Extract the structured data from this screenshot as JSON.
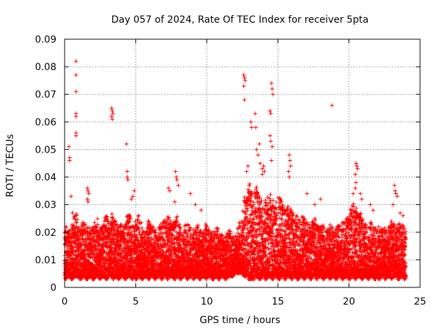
{
  "chart_data": {
    "type": "scatter",
    "title": "Day 057 of 2024, Rate Of TEC Index for receiver 5pta",
    "xlabel": "GPS time / hours",
    "ylabel": "ROTI / TECUs",
    "xlim": [
      0,
      25
    ],
    "ylim": [
      0,
      0.09
    ],
    "xticks": [
      0,
      5,
      10,
      15,
      20,
      25
    ],
    "xtick_labels": [
      "0",
      "5",
      "10",
      "15",
      "20",
      "25"
    ],
    "yticks": [
      0,
      0.01,
      0.02,
      0.03,
      0.04,
      0.05,
      0.06,
      0.07,
      0.08,
      0.09
    ],
    "ytick_labels": [
      "0",
      "0.01",
      "0.02",
      "0.03",
      "0.04",
      "0.05",
      "0.06",
      "0.07",
      "0.08",
      "0.09"
    ],
    "grid": true,
    "marker": "+",
    "color": "#ff0000",
    "series": [
      {
        "x": [
          0.0,
          0.15,
          0.3,
          0.45,
          0.6,
          0.75,
          0.9,
          1.05,
          1.2,
          1.35,
          1.5,
          1.65,
          1.8,
          1.95,
          2.1,
          2.25,
          2.4,
          2.55,
          2.7,
          2.85,
          3.0,
          3.15,
          3.3,
          3.45,
          3.6,
          3.75,
          3.9,
          4.05,
          4.2,
          4.35,
          4.5,
          4.65,
          4.8,
          4.95,
          5.1,
          5.25,
          5.4,
          5.55,
          5.7,
          5.85,
          6.0,
          6.15,
          6.3,
          6.45,
          6.6,
          6.75,
          6.9,
          7.05,
          7.2,
          7.35,
          7.5,
          7.65,
          7.8,
          7.95,
          8.1,
          8.25,
          8.4,
          8.55,
          8.7,
          8.85,
          9.0,
          9.15,
          9.3,
          9.45,
          9.6,
          9.75,
          9.9,
          10.05,
          10.2,
          10.35,
          10.5,
          10.65,
          10.8,
          10.95,
          11.1,
          11.25,
          11.4,
          11.55,
          11.7,
          11.85,
          12.0,
          12.15,
          12.3,
          12.45,
          12.6,
          12.75,
          12.9,
          13.05,
          13.2,
          13.35,
          13.5,
          13.65,
          13.8,
          13.95,
          14.1,
          14.25,
          14.4,
          14.55,
          14.7,
          14.85,
          15.0,
          15.15,
          15.3,
          15.45,
          15.6,
          15.75,
          15.9,
          16.05,
          16.2,
          16.35,
          16.5,
          16.65,
          16.8,
          16.95,
          17.1,
          17.25,
          17.4,
          17.55,
          17.7,
          17.85,
          18.0,
          18.15,
          18.3,
          18.45,
          18.6,
          18.75,
          18.9,
          19.05,
          19.2,
          19.35,
          19.5,
          19.65,
          19.8,
          19.95,
          20.1,
          20.25,
          20.4,
          20.55,
          20.7,
          20.85,
          21.0,
          21.15,
          21.3,
          21.45,
          21.6,
          21.75,
          21.9,
          22.05,
          22.2,
          22.35,
          22.5,
          22.65,
          22.8,
          22.95,
          23.1,
          23.25,
          23.4,
          23.55,
          23.7,
          23.85,
          24.0
        ],
        "y_low": [
          0.003,
          0.004,
          0.004,
          0.003,
          0.004,
          0.004,
          0.004,
          0.003,
          0.004,
          0.004,
          0.003,
          0.004,
          0.004,
          0.003,
          0.004,
          0.004,
          0.003,
          0.004,
          0.004,
          0.003,
          0.004,
          0.004,
          0.003,
          0.004,
          0.004,
          0.003,
          0.004,
          0.004,
          0.003,
          0.004,
          0.004,
          0.003,
          0.004,
          0.003,
          0.004,
          0.004,
          0.003,
          0.004,
          0.004,
          0.003,
          0.004,
          0.004,
          0.003,
          0.004,
          0.004,
          0.003,
          0.004,
          0.004,
          0.003,
          0.004,
          0.004,
          0.003,
          0.004,
          0.004,
          0.003,
          0.004,
          0.004,
          0.003,
          0.004,
          0.004,
          0.003,
          0.004,
          0.004,
          0.003,
          0.004,
          0.004,
          0.003,
          0.004,
          0.004,
          0.003,
          0.004,
          0.004,
          0.003,
          0.004,
          0.004,
          0.003,
          0.004,
          0.004,
          0.004,
          0.005,
          0.005,
          0.005,
          0.005,
          0.005,
          0.004,
          0.004,
          0.003,
          0.003,
          0.003,
          0.004,
          0.004,
          0.003,
          0.004,
          0.004,
          0.003,
          0.004,
          0.004,
          0.003,
          0.004,
          0.004,
          0.003,
          0.004,
          0.004,
          0.003,
          0.004,
          0.004,
          0.003,
          0.004,
          0.004,
          0.003,
          0.004,
          0.004,
          0.003,
          0.004,
          0.004,
          0.003,
          0.004,
          0.004,
          0.003,
          0.004,
          0.004,
          0.003,
          0.004,
          0.004,
          0.003,
          0.004,
          0.004,
          0.003,
          0.004,
          0.004,
          0.003,
          0.004,
          0.004,
          0.003,
          0.004,
          0.004,
          0.003,
          0.004,
          0.004,
          0.003,
          0.004,
          0.004,
          0.003,
          0.004,
          0.004,
          0.003,
          0.004,
          0.003,
          0.004,
          0.004,
          0.003,
          0.004,
          0.004,
          0.003,
          0.004,
          0.004,
          0.003,
          0.004,
          0.004,
          0.003,
          0.004
        ],
        "y_high": [
          0.022,
          0.02,
          0.021,
          0.024,
          0.026,
          0.028,
          0.024,
          0.022,
          0.025,
          0.024,
          0.022,
          0.023,
          0.024,
          0.022,
          0.024,
          0.025,
          0.023,
          0.022,
          0.024,
          0.026,
          0.025,
          0.024,
          0.027,
          0.025,
          0.023,
          0.022,
          0.024,
          0.022,
          0.023,
          0.026,
          0.027,
          0.024,
          0.022,
          0.025,
          0.026,
          0.024,
          0.022,
          0.021,
          0.022,
          0.024,
          0.023,
          0.022,
          0.021,
          0.02,
          0.022,
          0.023,
          0.025,
          0.024,
          0.026,
          0.025,
          0.023,
          0.024,
          0.026,
          0.024,
          0.022,
          0.021,
          0.023,
          0.024,
          0.022,
          0.02,
          0.021,
          0.022,
          0.023,
          0.021,
          0.02,
          0.022,
          0.023,
          0.021,
          0.02,
          0.019,
          0.021,
          0.022,
          0.02,
          0.019,
          0.018,
          0.019,
          0.02,
          0.021,
          0.02,
          0.019,
          0.02,
          0.022,
          0.024,
          0.028,
          0.033,
          0.036,
          0.038,
          0.036,
          0.034,
          0.037,
          0.036,
          0.034,
          0.032,
          0.03,
          0.033,
          0.035,
          0.034,
          0.032,
          0.03,
          0.031,
          0.033,
          0.032,
          0.03,
          0.028,
          0.03,
          0.031,
          0.029,
          0.027,
          0.026,
          0.025,
          0.024,
          0.026,
          0.025,
          0.024,
          0.023,
          0.022,
          0.024,
          0.025,
          0.023,
          0.022,
          0.023,
          0.024,
          0.022,
          0.021,
          0.023,
          0.022,
          0.021,
          0.022,
          0.023,
          0.022,
          0.024,
          0.025,
          0.026,
          0.028,
          0.03,
          0.032,
          0.03,
          0.028,
          0.027,
          0.025,
          0.024,
          0.023,
          0.022,
          0.024,
          0.023,
          0.022,
          0.021,
          0.022,
          0.023,
          0.022,
          0.021,
          0.022,
          0.023,
          0.024,
          0.023,
          0.022,
          0.023,
          0.024,
          0.023,
          0.022,
          0.021
        ],
        "outliers": [
          [
            0.8,
            0.082
          ],
          [
            0.8,
            0.077
          ],
          [
            0.8,
            0.071
          ],
          [
            0.8,
            0.063
          ],
          [
            0.8,
            0.062
          ],
          [
            0.8,
            0.056
          ],
          [
            0.8,
            0.055
          ],
          [
            0.3,
            0.051
          ],
          [
            0.35,
            0.047
          ],
          [
            0.35,
            0.046
          ],
          [
            0.45,
            0.033
          ],
          [
            0.55,
            0.027
          ],
          [
            1.6,
            0.036
          ],
          [
            1.65,
            0.035
          ],
          [
            1.7,
            0.034
          ],
          [
            1.6,
            0.032
          ],
          [
            1.65,
            0.031
          ],
          [
            3.3,
            0.065
          ],
          [
            3.35,
            0.064
          ],
          [
            3.4,
            0.063
          ],
          [
            3.3,
            0.062
          ],
          [
            3.35,
            0.061
          ],
          [
            4.35,
            0.052
          ],
          [
            4.4,
            0.042
          ],
          [
            4.4,
            0.04
          ],
          [
            4.45,
            0.039
          ],
          [
            4.9,
            0.035
          ],
          [
            4.8,
            0.033
          ],
          [
            4.7,
            0.032
          ],
          [
            7.3,
            0.036
          ],
          [
            7.4,
            0.035
          ],
          [
            7.8,
            0.042
          ],
          [
            7.85,
            0.04
          ],
          [
            7.9,
            0.039
          ],
          [
            8.0,
            0.037
          ],
          [
            7.75,
            0.031
          ],
          [
            8.85,
            0.034
          ],
          [
            9.2,
            0.03
          ],
          [
            9.6,
            0.028
          ],
          [
            12.6,
            0.077
          ],
          [
            12.65,
            0.076
          ],
          [
            12.7,
            0.075
          ],
          [
            12.6,
            0.073
          ],
          [
            12.65,
            0.068
          ],
          [
            12.8,
            0.042
          ],
          [
            12.9,
            0.044
          ],
          [
            13.1,
            0.06
          ],
          [
            13.15,
            0.058
          ],
          [
            13.4,
            0.063
          ],
          [
            13.45,
            0.058
          ],
          [
            13.5,
            0.05
          ],
          [
            13.6,
            0.048
          ],
          [
            13.7,
            0.052
          ],
          [
            13.75,
            0.045
          ],
          [
            13.9,
            0.043
          ],
          [
            13.9,
            0.041
          ],
          [
            14.0,
            0.044
          ],
          [
            14.05,
            0.042
          ],
          [
            14.55,
            0.074
          ],
          [
            14.6,
            0.072
          ],
          [
            14.65,
            0.07
          ],
          [
            14.45,
            0.064
          ],
          [
            14.5,
            0.063
          ],
          [
            14.45,
            0.055
          ],
          [
            14.5,
            0.053
          ],
          [
            14.6,
            0.051
          ],
          [
            14.55,
            0.046
          ],
          [
            15.8,
            0.048
          ],
          [
            15.85,
            0.046
          ],
          [
            15.9,
            0.044
          ],
          [
            15.75,
            0.042
          ],
          [
            15.8,
            0.04
          ],
          [
            17.05,
            0.034
          ],
          [
            17.6,
            0.03
          ],
          [
            18.0,
            0.032
          ],
          [
            18.8,
            0.066
          ],
          [
            20.5,
            0.045
          ],
          [
            20.55,
            0.044
          ],
          [
            20.6,
            0.043
          ],
          [
            20.45,
            0.041
          ],
          [
            20.5,
            0.038
          ],
          [
            20.45,
            0.036
          ],
          [
            20.3,
            0.034
          ],
          [
            20.8,
            0.034
          ],
          [
            20.9,
            0.032
          ],
          [
            21.5,
            0.03
          ],
          [
            21.7,
            0.028
          ],
          [
            23.2,
            0.037
          ],
          [
            23.25,
            0.035
          ],
          [
            23.3,
            0.034
          ],
          [
            23.4,
            0.033
          ],
          [
            23.1,
            0.03
          ],
          [
            23.6,
            0.027
          ],
          [
            23.8,
            0.026
          ]
        ]
      }
    ]
  }
}
